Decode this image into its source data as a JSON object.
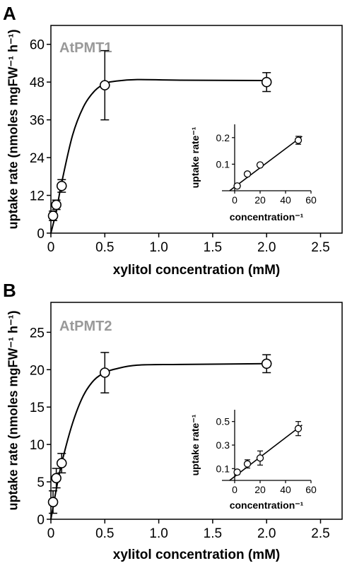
{
  "chart_data": [
    {
      "panel": "A",
      "type": "scatter",
      "title": "AtPMT1",
      "xlabel": "xylitol concentration (mM)",
      "ylabel": "uptake rate (nmoles mgFW⁻¹ h⁻¹)",
      "xlim": [
        0,
        2.7
      ],
      "ylim": [
        0,
        66
      ],
      "xticks": [
        "0",
        "0.5",
        "1.0",
        "1.5",
        "2.0",
        "2.5"
      ],
      "xtick_values": [
        0,
        0.5,
        1.0,
        1.5,
        2.0,
        2.5
      ],
      "yticks": [
        "0",
        "12",
        "24",
        "36",
        "48",
        "60"
      ],
      "ytick_values": [
        0,
        12,
        24,
        36,
        48,
        60
      ],
      "points": [
        {
          "x": 0.02,
          "y": 5.5,
          "err": 1.5
        },
        {
          "x": 0.05,
          "y": 9.0,
          "err": 1.5
        },
        {
          "x": 0.1,
          "y": 15.0,
          "err": 2.0
        },
        {
          "x": 0.5,
          "y": 47.0,
          "err": 11.0
        },
        {
          "x": 2.0,
          "y": 48.0,
          "err": 3.0
        }
      ],
      "fit_curve": [
        [
          0,
          0
        ],
        [
          0.05,
          7
        ],
        [
          0.1,
          16
        ],
        [
          0.2,
          31
        ],
        [
          0.3,
          40
        ],
        [
          0.4,
          45
        ],
        [
          0.5,
          47.5
        ],
        [
          0.6,
          48.3
        ],
        [
          0.8,
          48.8
        ],
        [
          1.2,
          48.6
        ],
        [
          2.0,
          48.5
        ]
      ],
      "grid": false,
      "inset": {
        "type": "scatter",
        "xlabel": "concentration⁻¹",
        "ylabel": "uptake rate⁻¹",
        "xlim": [
          -10,
          60
        ],
        "ylim": [
          0,
          0.25
        ],
        "xticks": [
          "0",
          "20",
          "40",
          "60"
        ],
        "xtick_values": [
          0,
          20,
          40,
          60
        ],
        "yticks": [
          "0.1",
          "0.2"
        ],
        "ytick_values": [
          0.1,
          0.2
        ],
        "points": [
          {
            "x": 2,
            "y": 0.018,
            "err": 0.008
          },
          {
            "x": 10,
            "y": 0.063,
            "err": 0.006
          },
          {
            "x": 20,
            "y": 0.097,
            "err": 0.008
          },
          {
            "x": 50,
            "y": 0.19,
            "err": 0.015
          }
        ],
        "fit_line": [
          [
            -4,
            0
          ],
          [
            53,
            0.205
          ]
        ]
      }
    },
    {
      "panel": "B",
      "type": "scatter",
      "title": "AtPMT2",
      "xlabel": "xylitol concentration (mM)",
      "ylabel": "uptake rate (nmoles mgFW⁻¹ h⁻¹)",
      "xlim": [
        0,
        2.7
      ],
      "ylim": [
        0,
        29
      ],
      "xticks": [
        "0",
        "0.5",
        "1.0",
        "1.5",
        "2.0",
        "2.5"
      ],
      "xtick_values": [
        0,
        0.5,
        1.0,
        1.5,
        2.0,
        2.5
      ],
      "yticks": [
        "0",
        "5",
        "10",
        "15",
        "20",
        "25"
      ],
      "ytick_values": [
        0,
        5,
        10,
        15,
        20,
        25
      ],
      "points": [
        {
          "x": 0.02,
          "y": 2.3,
          "err": 1.5
        },
        {
          "x": 0.05,
          "y": 5.5,
          "err": 1.3
        },
        {
          "x": 0.1,
          "y": 7.5,
          "err": 1.3
        },
        {
          "x": 0.5,
          "y": 19.6,
          "err": 2.7
        },
        {
          "x": 2.0,
          "y": 20.8,
          "err": 1.2
        }
      ],
      "fit_curve": [
        [
          0,
          0
        ],
        [
          0.05,
          4
        ],
        [
          0.1,
          7.5
        ],
        [
          0.2,
          12.8
        ],
        [
          0.3,
          16.5
        ],
        [
          0.4,
          18.6
        ],
        [
          0.5,
          19.6
        ],
        [
          0.6,
          20.1
        ],
        [
          0.8,
          20.6
        ],
        [
          1.2,
          20.7
        ],
        [
          2.0,
          20.8
        ]
      ],
      "grid": false,
      "inset": {
        "type": "scatter",
        "xlabel": "concentration⁻¹",
        "ylabel": "uptake rate⁻¹",
        "xlim": [
          -10,
          60
        ],
        "ylim": [
          0,
          0.6
        ],
        "xticks": [
          "0",
          "20",
          "40",
          "60"
        ],
        "xtick_values": [
          0,
          20,
          40,
          60
        ],
        "yticks": [
          "0.1",
          "0.3",
          "0.5"
        ],
        "ytick_values": [
          0.1,
          0.3,
          0.5
        ],
        "points": [
          {
            "x": 2,
            "y": 0.07,
            "err": 0.02
          },
          {
            "x": 10,
            "y": 0.14,
            "err": 0.035
          },
          {
            "x": 20,
            "y": 0.19,
            "err": 0.06
          },
          {
            "x": 50,
            "y": 0.44,
            "err": 0.06
          }
        ],
        "fit_line": [
          [
            -4,
            0
          ],
          [
            53,
            0.47
          ]
        ]
      }
    }
  ]
}
